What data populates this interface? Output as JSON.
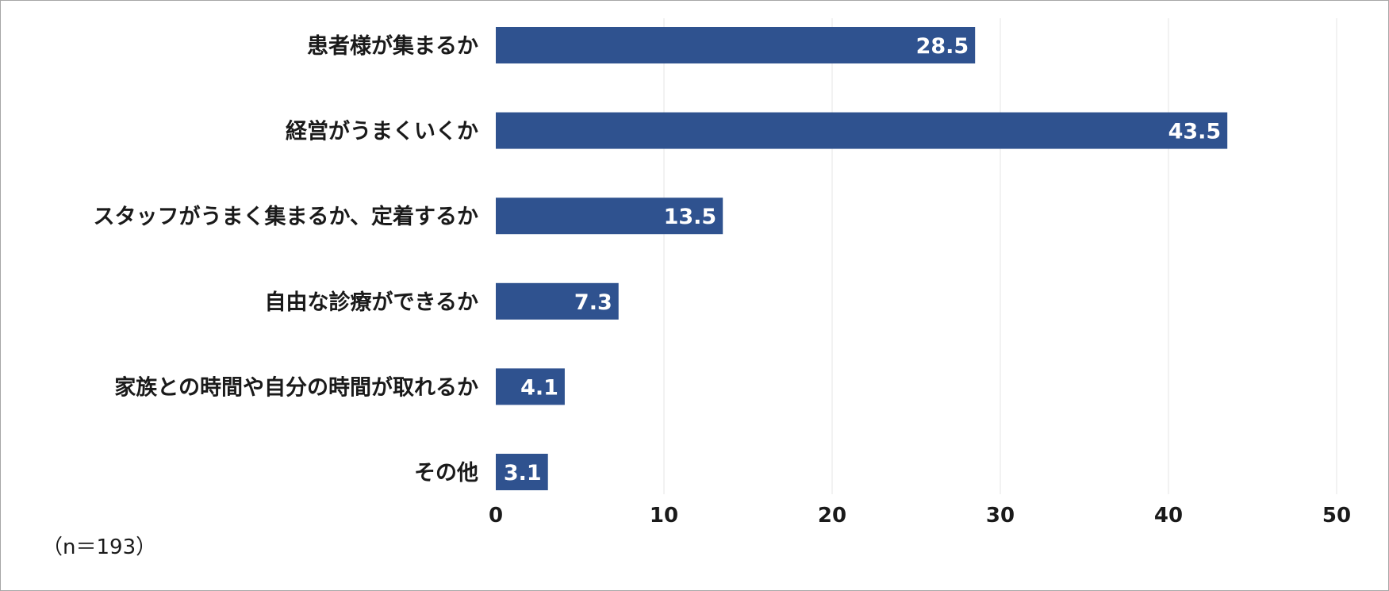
{
  "chart_data": {
    "type": "bar",
    "orientation": "horizontal",
    "categories": [
      "患者様が集まるか",
      "経営がうまくいくか",
      "スタッフがうまく集まるか、定着するか",
      "自由な診療ができるか",
      "家族との時間や自分の時間が取れるか",
      "その他"
    ],
    "values": [
      28.5,
      43.5,
      13.5,
      7.3,
      4.1,
      3.1
    ],
    "data_labels": [
      "28.5",
      "43.5",
      "13.5",
      "7.3",
      "4.1",
      "3.1"
    ],
    "xlim": [
      0,
      50
    ],
    "x_ticks": [
      0,
      10,
      20,
      30,
      40,
      50
    ],
    "grid": true,
    "bar_color": "#2f528f",
    "grid_color": "#e6e6e6"
  },
  "note": "（n＝193）"
}
